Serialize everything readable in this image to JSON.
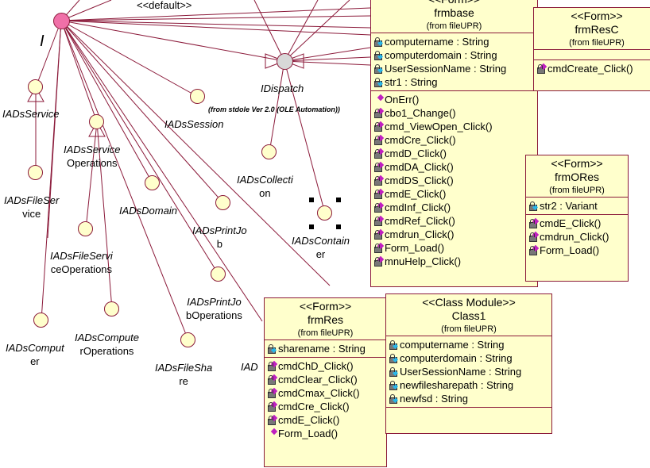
{
  "diagram": {
    "stereotype_default": "<<default>>",
    "root_interface_label": "I",
    "interfaces": [
      {
        "id": "iadsservice",
        "label": "IADsService",
        "line2": ""
      },
      {
        "id": "iadsfileservice",
        "label": "IADsFileSer",
        "line2": "vice"
      },
      {
        "id": "iadsserviceoperations",
        "label": "IADsService",
        "line2": "Operations"
      },
      {
        "id": "iadssession",
        "label": "IADsSession",
        "line2": ""
      },
      {
        "id": "idispatch",
        "label": "IDispatch",
        "line2": ""
      },
      {
        "id": "iadscollection",
        "label": "IADsCollecti",
        "line2": "on"
      },
      {
        "id": "iadsdomain",
        "label": "IADsDomain",
        "line2": ""
      },
      {
        "id": "iadsprintjob",
        "label": "IADsPrintJo",
        "line2": "b"
      },
      {
        "id": "iadscontainer",
        "label": "IADsContain",
        "line2": "er"
      },
      {
        "id": "iadsfileserviceoperations",
        "label": "IADsFileServi",
        "line2": "ceOperations"
      },
      {
        "id": "iadsprintjoboperations",
        "label": "IADsPrintJo",
        "line2": "bOperations"
      },
      {
        "id": "iadscomputer",
        "label": "IADsComput",
        "line2": "er"
      },
      {
        "id": "iadscomputeroperations",
        "label": "IADsCompute",
        "line2": "rOperations"
      },
      {
        "id": "iadsfileshare",
        "label": "IADsFileSha",
        "line2": "re"
      },
      {
        "id": "iad-cut",
        "label": "IAD",
        "line2": ""
      }
    ],
    "idispatch_note": "(from stdole Ver 2.0 (OLE Automation))",
    "classes": [
      {
        "id": "frmbase",
        "stereotype": "<<Form>>",
        "name": "frmbase",
        "from": "(from fileUPR)",
        "attributes": [
          "computername : String",
          "computerdomain : String",
          "UserSessionName : String",
          "str1 : String"
        ],
        "methods": [
          {
            "t": "OnErr()",
            "pub": true
          },
          {
            "t": "cbo1_Change()"
          },
          {
            "t": "cmd_ViewOpen_Click()"
          },
          {
            "t": "cmdCre_Click()"
          },
          {
            "t": "cmdD_Click()"
          },
          {
            "t": "cmdDA_Click()"
          },
          {
            "t": "cmdDS_Click()"
          },
          {
            "t": "cmdE_Click()"
          },
          {
            "t": "cmdInf_Click()"
          },
          {
            "t": "cmdRef_Click()"
          },
          {
            "t": "cmdrun_Click()"
          },
          {
            "t": "Form_Load()"
          },
          {
            "t": "mnuHelp_Click()"
          }
        ]
      },
      {
        "id": "frmresc",
        "stereotype": "<<Form>>",
        "name": "frmResC",
        "from": "(from fileUPR)",
        "attributes": [],
        "methods": [
          {
            "t": "cmdCreate_Click()"
          }
        ]
      },
      {
        "id": "frmores",
        "stereotype": "<<Form>>",
        "name": "frmORes",
        "from": "(from fileUPR)",
        "attributes": [
          "str2 : Variant"
        ],
        "methods": [
          {
            "t": "cmdE_Click()"
          },
          {
            "t": "cmdrun_Click()"
          },
          {
            "t": "Form_Load()"
          }
        ]
      },
      {
        "id": "frmres",
        "stereotype": "<<Form>>",
        "name": "frmRes",
        "from": "(from fileUPR)",
        "attributes": [
          "sharename : String"
        ],
        "methods": [
          {
            "t": "cmdChD_Click()"
          },
          {
            "t": "cmdClear_Click()"
          },
          {
            "t": "cmdCmax_Click()"
          },
          {
            "t": "cmdCre_Click()"
          },
          {
            "t": "cmdE_Click()"
          },
          {
            "t": "Form_Load()",
            "pub": true
          }
        ]
      },
      {
        "id": "class1",
        "stereotype": "<<Class Module>>",
        "name": "Class1",
        "from": "(from fileUPR)",
        "attributes": [
          "computername : String",
          "computerdomain : String",
          "UserSessionName : String",
          "newfilesharepath : String",
          "newfsd : String"
        ],
        "methods": []
      }
    ],
    "colors": {
      "line": "#8b1a3a",
      "box_fill": "#ffffcc",
      "root_interface": "#f070a8",
      "idispatch": "#d8d8d8",
      "method_icon": "#c020c0",
      "attr_icon": "#29b6e8"
    }
  }
}
